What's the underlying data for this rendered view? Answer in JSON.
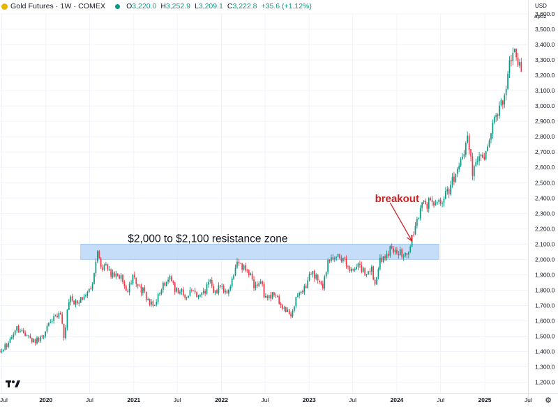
{
  "legend": {
    "title": "Gold Futures · 1W · COMEX",
    "open_key": "O",
    "open": "3,220.0",
    "high_key": "H",
    "high": "3,252.9",
    "low_key": "L",
    "low": "3,209.1",
    "close_key": "C",
    "close": "3,222.8",
    "change": "+35.6 (+1.12%)",
    "status_color": "#089981"
  },
  "axis": {
    "currency": "USD",
    "scale_mode": "apoz"
  },
  "icons": {
    "logo": "tradingview-logo-icon",
    "settings": "gear-icon"
  },
  "chart_data": {
    "type": "candlestick",
    "title": "Gold Futures · 1W · COMEX",
    "xlabel": "",
    "ylabel": "",
    "y_unit": "USD",
    "ylim": [
      1130,
      3600
    ],
    "xlim": [
      "2019-06-24",
      "2025-06-30"
    ],
    "grid": true,
    "x_tick_labels": [
      {
        "date": "2019-07-01",
        "label": "Jul"
      },
      {
        "date": "2020-01-01",
        "label": "2020"
      },
      {
        "date": "2020-07-01",
        "label": "Jul"
      },
      {
        "date": "2021-01-01",
        "label": "2021"
      },
      {
        "date": "2021-07-01",
        "label": "Jul"
      },
      {
        "date": "2022-01-01",
        "label": "2022"
      },
      {
        "date": "2022-07-01",
        "label": "Jul"
      },
      {
        "date": "2023-01-01",
        "label": "2023"
      },
      {
        "date": "2023-07-01",
        "label": "Jul"
      },
      {
        "date": "2024-01-01",
        "label": "2024"
      },
      {
        "date": "2024-07-01",
        "label": "Jul"
      },
      {
        "date": "2025-01-01",
        "label": "2025"
      },
      {
        "date": "2025-07-01",
        "label": "Jul"
      }
    ],
    "y_ticks": [
      1200,
      1300,
      1400,
      1500,
      1600,
      1700,
      1800,
      1900,
      2000,
      2100,
      2200,
      2300,
      2400,
      2500,
      2600,
      2700,
      2800,
      2900,
      3000,
      3100,
      3200,
      3300,
      3400,
      3500,
      3600
    ],
    "y_tick_labels": [
      "1,200.0",
      "1,300.0",
      "1,400.0",
      "1,500.0",
      "1,600.0",
      "1,700.0",
      "1,800.0",
      "1,900.0",
      "2,000.0",
      "2,100.0",
      "2,200.0",
      "2,300.0",
      "2,400.0",
      "2,500.0",
      "2,600.0",
      "2,700.0",
      "2,800.0",
      "2,900.0",
      "3,000.0",
      "3,100.0",
      "3,200.0",
      "3,300.0",
      "3,400.0",
      "3,500.0",
      "3,600.0"
    ],
    "up_color": "#089981",
    "down_color": "#f23645",
    "path_anchors": [
      [
        "2019-06-24",
        1400
      ],
      [
        "2019-07-29",
        1455
      ],
      [
        "2019-09-02",
        1545
      ],
      [
        "2019-10-07",
        1515
      ],
      [
        "2019-11-11",
        1470
      ],
      [
        "2019-12-16",
        1480
      ],
      [
        "2020-01-06",
        1560
      ],
      [
        "2020-02-17",
        1640
      ],
      [
        "2020-03-02",
        1650
      ],
      [
        "2020-03-16",
        1490
      ],
      [
        "2020-04-06",
        1740
      ],
      [
        "2020-05-11",
        1720
      ],
      [
        "2020-06-08",
        1760
      ],
      [
        "2020-07-06",
        1810
      ],
      [
        "2020-07-27",
        1980
      ],
      [
        "2020-08-03",
        2060
      ],
      [
        "2020-08-17",
        1930
      ],
      [
        "2020-09-07",
        1950
      ],
      [
        "2020-09-28",
        1890
      ],
      [
        "2020-10-19",
        1920
      ],
      [
        "2020-11-16",
        1860
      ],
      [
        "2020-11-30",
        1780
      ],
      [
        "2020-12-28",
        1890
      ],
      [
        "2021-01-11",
        1850
      ],
      [
        "2021-02-15",
        1780
      ],
      [
        "2021-03-08",
        1700
      ],
      [
        "2021-04-05",
        1730
      ],
      [
        "2021-05-03",
        1830
      ],
      [
        "2021-05-31",
        1910
      ],
      [
        "2021-06-21",
        1780
      ],
      [
        "2021-07-12",
        1810
      ],
      [
        "2021-08-09",
        1740
      ],
      [
        "2021-09-06",
        1820
      ],
      [
        "2021-09-27",
        1750
      ],
      [
        "2021-10-25",
        1790
      ],
      [
        "2021-11-15",
        1860
      ],
      [
        "2021-11-29",
        1780
      ],
      [
        "2021-12-27",
        1820
      ],
      [
        "2022-01-24",
        1790
      ],
      [
        "2022-02-14",
        1860
      ],
      [
        "2022-03-07",
        1990
      ],
      [
        "2022-03-28",
        1930
      ],
      [
        "2022-04-18",
        1950
      ],
      [
        "2022-05-16",
        1830
      ],
      [
        "2022-06-13",
        1850
      ],
      [
        "2022-07-04",
        1740
      ],
      [
        "2022-07-25",
        1770
      ],
      [
        "2022-08-22",
        1750
      ],
      [
        "2022-09-26",
        1670
      ],
      [
        "2022-10-17",
        1650
      ],
      [
        "2022-11-14",
        1770
      ],
      [
        "2022-12-12",
        1810
      ],
      [
        "2023-01-09",
        1920
      ],
      [
        "2023-02-06",
        1880
      ],
      [
        "2023-02-27",
        1830
      ],
      [
        "2023-03-20",
        1980
      ],
      [
        "2023-04-10",
        2020
      ],
      [
        "2023-05-08",
        2030
      ],
      [
        "2023-06-05",
        1970
      ],
      [
        "2023-06-26",
        1920
      ],
      [
        "2023-07-24",
        1970
      ],
      [
        "2023-08-21",
        1910
      ],
      [
        "2023-09-18",
        1930
      ],
      [
        "2023-10-02",
        1840
      ],
      [
        "2023-10-23",
        1990
      ],
      [
        "2023-11-13",
        2000
      ],
      [
        "2023-12-04",
        2070
      ],
      [
        "2023-12-25",
        2070
      ],
      [
        "2024-01-22",
        2030
      ],
      [
        "2024-02-12",
        2020
      ],
      [
        "2024-03-04",
        2150
      ],
      [
        "2024-04-01",
        2300
      ],
      [
        "2024-04-15",
        2400
      ],
      [
        "2024-05-06",
        2320
      ],
      [
        "2024-05-20",
        2420
      ],
      [
        "2024-06-10",
        2340
      ],
      [
        "2024-07-08",
        2400
      ],
      [
        "2024-08-05",
        2450
      ],
      [
        "2024-08-26",
        2540
      ],
      [
        "2024-09-23",
        2660
      ],
      [
        "2024-10-21",
        2770
      ],
      [
        "2024-11-11",
        2570
      ],
      [
        "2024-12-09",
        2680
      ],
      [
        "2024-12-30",
        2640
      ],
      [
        "2025-01-27",
        2820
      ],
      [
        "2025-02-17",
        2950
      ],
      [
        "2025-03-10",
        3000
      ],
      [
        "2025-03-31",
        3130
      ],
      [
        "2025-04-14",
        3340
      ],
      [
        "2025-04-21",
        3300
      ],
      [
        "2025-05-05",
        3350
      ],
      [
        "2025-05-19",
        3290
      ],
      [
        "2025-06-02",
        3222.8
      ]
    ],
    "resistance_zone": {
      "y_low": 2000,
      "y_high": 2100,
      "x_start": "2020-05-25",
      "x_end": "2024-06-24",
      "color": "#bbd7f7"
    },
    "annotations": [
      {
        "text": "$2,000 to $2,100 resistance zone",
        "date": "2020-12-07",
        "y": 2112,
        "color": "#131722"
      },
      {
        "text": "breakout",
        "date": "2023-10-02",
        "y": 2375,
        "color": "#cc2121"
      }
    ],
    "arrow": {
      "from_date": "2023-12-04",
      "from_y": 2370,
      "to_date": "2024-03-04",
      "to_y": 2120,
      "color": "#cc2121"
    }
  }
}
